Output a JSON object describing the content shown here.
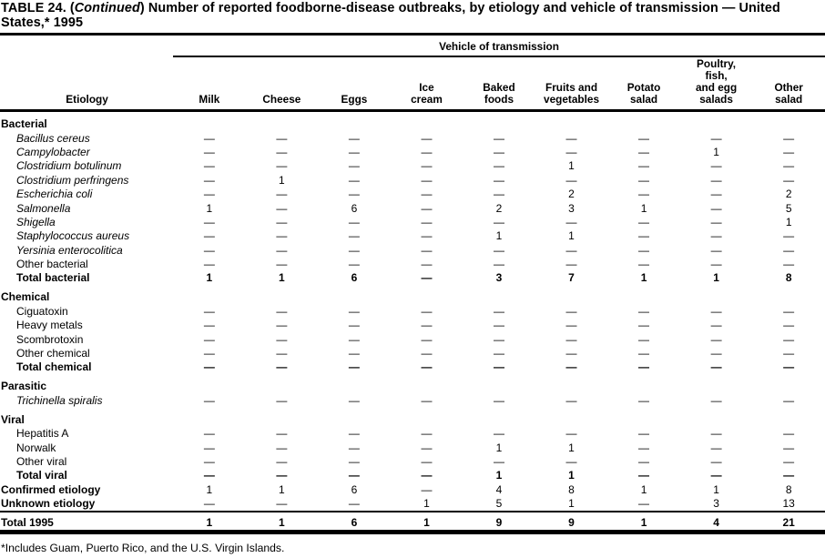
{
  "title": {
    "part1": "TABLE 24. (",
    "continued": "Continued",
    "part2": ") Number of reported foodborne-disease outbreaks, by etiology and vehicle of transmission — United States,* 1995"
  },
  "table": {
    "span_header": "Vehicle of transmission",
    "etiology_header": "Etiology",
    "columns": [
      "Milk",
      "Cheese",
      "Eggs",
      "Ice\ncream",
      "Baked\nfoods",
      "Fruits and\nvegetables",
      "Potato\nsalad",
      "Poultry,\nfish,\nand egg\nsalads",
      "Other\nsalad"
    ],
    "rows": [
      {
        "label": "Bacterial",
        "style": "section",
        "values": null
      },
      {
        "label": "Bacillus cereus",
        "style": "species",
        "values": [
          "—",
          "—",
          "—",
          "—",
          "—",
          "—",
          "—",
          "—",
          "—"
        ]
      },
      {
        "label": "Campylobacter",
        "style": "species",
        "values": [
          "—",
          "—",
          "—",
          "—",
          "—",
          "—",
          "—",
          "1",
          "—"
        ]
      },
      {
        "label": "Clostridium botulinum",
        "style": "species",
        "values": [
          "—",
          "—",
          "—",
          "—",
          "—",
          "1",
          "—",
          "—",
          "—"
        ]
      },
      {
        "label": "Clostridium perfringens",
        "style": "species",
        "values": [
          "—",
          "1",
          "—",
          "—",
          "—",
          "—",
          "—",
          "—",
          "—"
        ]
      },
      {
        "label": "Escherichia coli",
        "style": "species",
        "values": [
          "—",
          "—",
          "—",
          "—",
          "—",
          "2",
          "—",
          "—",
          "2"
        ]
      },
      {
        "label": "Salmonella",
        "style": "species",
        "values": [
          "1",
          "—",
          "6",
          "—",
          "2",
          "3",
          "1",
          "—",
          "5"
        ]
      },
      {
        "label": "Shigella",
        "style": "species",
        "values": [
          "—",
          "—",
          "—",
          "—",
          "—",
          "—",
          "—",
          "—",
          "1"
        ]
      },
      {
        "label": "Staphylococcus aureus",
        "style": "species",
        "values": [
          "—",
          "—",
          "—",
          "—",
          "1",
          "1",
          "—",
          "—",
          "—"
        ]
      },
      {
        "label": "Yersinia enterocolitica",
        "style": "species",
        "values": [
          "—",
          "—",
          "—",
          "—",
          "—",
          "—",
          "—",
          "—",
          "—"
        ]
      },
      {
        "label": "Other bacterial",
        "style": "item",
        "values": [
          "—",
          "—",
          "—",
          "—",
          "—",
          "—",
          "—",
          "—",
          "—"
        ]
      },
      {
        "label": "Total bacterial",
        "style": "total",
        "values": [
          "1",
          "1",
          "6",
          "—",
          "3",
          "7",
          "1",
          "1",
          "8"
        ]
      },
      {
        "label": "Chemical",
        "style": "section",
        "values": null
      },
      {
        "label": "Ciguatoxin",
        "style": "item",
        "values": [
          "—",
          "—",
          "—",
          "—",
          "—",
          "—",
          "—",
          "—",
          "—"
        ]
      },
      {
        "label": "Heavy metals",
        "style": "item",
        "values": [
          "—",
          "—",
          "—",
          "—",
          "—",
          "—",
          "—",
          "—",
          "—"
        ]
      },
      {
        "label": "Scombrotoxin",
        "style": "item",
        "values": [
          "—",
          "—",
          "—",
          "—",
          "—",
          "—",
          "—",
          "—",
          "—"
        ]
      },
      {
        "label": "Other chemical",
        "style": "item",
        "values": [
          "—",
          "—",
          "—",
          "—",
          "—",
          "—",
          "—",
          "—",
          "—"
        ]
      },
      {
        "label": "Total chemical",
        "style": "total",
        "values": [
          "—",
          "—",
          "—",
          "—",
          "—",
          "—",
          "—",
          "—",
          "—"
        ]
      },
      {
        "label": "Parasitic",
        "style": "section",
        "values": null
      },
      {
        "label": "Trichinella spiralis",
        "style": "species",
        "values": [
          "—",
          "—",
          "—",
          "—",
          "—",
          "—",
          "—",
          "—",
          "—"
        ]
      },
      {
        "label": "Viral",
        "style": "section",
        "values": null
      },
      {
        "label": "Hepatitis A",
        "style": "item",
        "values": [
          "—",
          "—",
          "—",
          "—",
          "—",
          "—",
          "—",
          "—",
          "—"
        ]
      },
      {
        "label": "Norwalk",
        "style": "item",
        "values": [
          "—",
          "—",
          "—",
          "—",
          "1",
          "1",
          "—",
          "—",
          "—"
        ]
      },
      {
        "label": "Other viral",
        "style": "item",
        "values": [
          "—",
          "—",
          "—",
          "—",
          "—",
          "—",
          "—",
          "—",
          "—"
        ]
      },
      {
        "label": "Total viral",
        "style": "total",
        "values": [
          "—",
          "—",
          "—",
          "—",
          "1",
          "1",
          "—",
          "—",
          "—"
        ]
      },
      {
        "label": "Confirmed etiology",
        "style": "summary",
        "values": [
          "1",
          "1",
          "6",
          "—",
          "4",
          "8",
          "1",
          "1",
          "8"
        ]
      },
      {
        "label": "Unknown etiology",
        "style": "summary",
        "values": [
          "—",
          "—",
          "—",
          "1",
          "5",
          "1",
          "—",
          "3",
          "13"
        ]
      },
      {
        "label": "Total 1995",
        "style": "grandtotal",
        "values": [
          "1",
          "1",
          "6",
          "1",
          "9",
          "9",
          "1",
          "4",
          "21"
        ]
      }
    ]
  },
  "footnote": "*Includes Guam, Puerto Rico, and the U.S. Virgin Islands."
}
